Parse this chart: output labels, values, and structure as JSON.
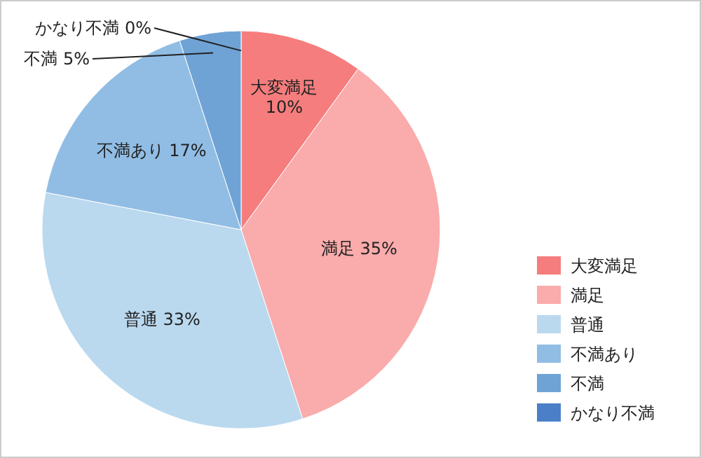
{
  "chart_data": {
    "type": "pie",
    "categories": [
      "大変満足",
      "満足",
      "普通",
      "不満あり",
      "不満",
      "かなり不満"
    ],
    "values": [
      10,
      35,
      33,
      17,
      5,
      0
    ],
    "colors": [
      "#f67d7d",
      "#faabab",
      "#bad9ef",
      "#91bde4",
      "#6fa3d5",
      "#4b80c8"
    ],
    "value_labels": [
      "10%",
      "35%",
      "33%",
      "17%",
      "5%",
      "0%"
    ],
    "legend": "right"
  }
}
